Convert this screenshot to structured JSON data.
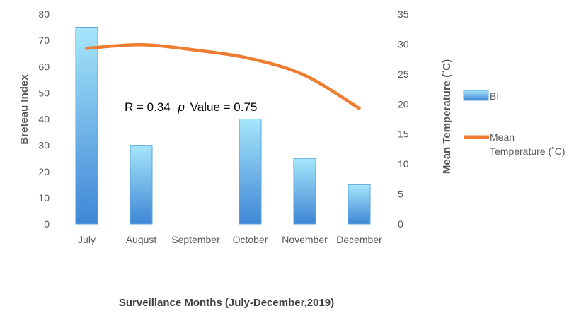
{
  "chart_data": {
    "type": "bar",
    "categories": [
      "July",
      "August",
      "September",
      "October",
      "November",
      "December"
    ],
    "series": [
      {
        "name": "BI",
        "kind": "bar",
        "axis": "left",
        "values": [
          75,
          30,
          0,
          40,
          25,
          15
        ]
      },
      {
        "name": "Mean Temperature (˚C)",
        "kind": "line",
        "axis": "right",
        "values": [
          29.3,
          29.9,
          29.0,
          27.6,
          24.8,
          19.3
        ]
      }
    ],
    "xlabel": "Surveillance Months (July-December,2019)",
    "ylabel_left": "Breteau Index",
    "ylabel_right": "Mean Temperature (˚C)",
    "ylim_left": [
      0,
      80
    ],
    "ylim_right": [
      0,
      35
    ],
    "yticks_left": [
      "0",
      "10",
      "20",
      "30",
      "40",
      "50",
      "60",
      "70",
      "80"
    ],
    "yticks_right": [
      "0",
      "5",
      "10",
      "15",
      "20",
      "25",
      "30",
      "35"
    ],
    "legend": [
      "BI",
      "Mean Temperature (˚C)"
    ],
    "legend_position": "right",
    "grid": false,
    "annotation": {
      "r_text": "R = 0.34",
      "p_italic": "p",
      "p_rest": "Value = 0.75"
    },
    "colors": {
      "bar_top": "#a6e6fa",
      "bar_bottom": "#3f86d6",
      "bar_border": "#5aa4e0",
      "line": "#ee7d31",
      "axis_text": "#595959"
    }
  }
}
